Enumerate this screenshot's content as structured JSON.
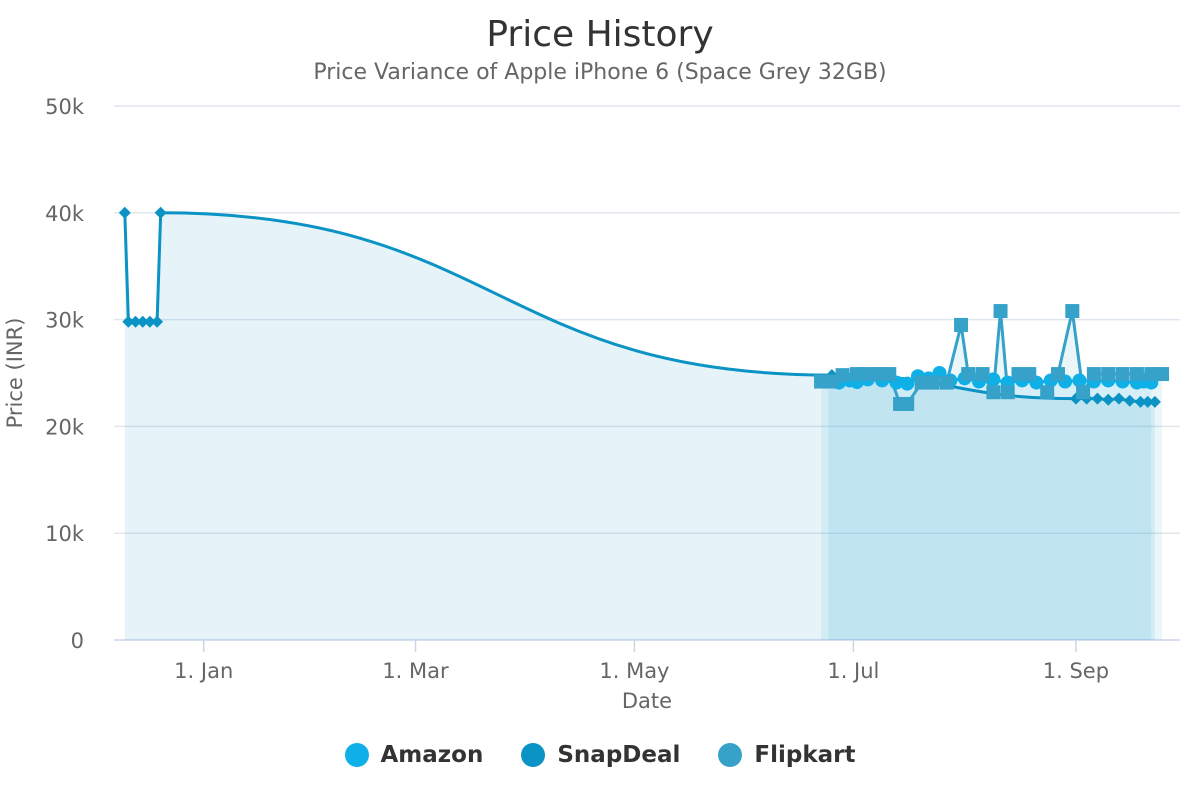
{
  "chart_data": {
    "type": "line",
    "title": "Price History",
    "subtitle": "Price Variance of Apple iPhone 6 (Space Grey 32GB)",
    "xlabel": "Date",
    "ylabel": "Price (INR)",
    "ylim": [
      0,
      50000
    ],
    "y_ticks": [
      "0",
      "10k",
      "20k",
      "30k",
      "40k",
      "50k"
    ],
    "x_ticks": [
      {
        "label": "1. Jan",
        "date": "2015-01-01"
      },
      {
        "label": "1. Mar",
        "date": "2015-03-01"
      },
      {
        "label": "1. May",
        "date": "2015-05-01"
      },
      {
        "label": "1. Jul",
        "date": "2015-07-01"
      },
      {
        "label": "1. Sep",
        "date": "2015-09-01"
      }
    ],
    "xlim": [
      "2014-12-07",
      "2015-09-30"
    ],
    "grid": true,
    "legend_position": "bottom-center",
    "series": [
      {
        "name": "Amazon",
        "color": "#0fb0e8",
        "marker": "circle",
        "points": [
          [
            "2015-06-24",
            24200
          ],
          [
            "2015-06-27",
            24100
          ],
          [
            "2015-06-30",
            24300
          ],
          [
            "2015-07-02",
            24150
          ],
          [
            "2015-07-05",
            24400
          ],
          [
            "2015-07-09",
            24300
          ],
          [
            "2015-07-13",
            24100
          ],
          [
            "2015-07-16",
            24000
          ],
          [
            "2015-07-19",
            24700
          ],
          [
            "2015-07-22",
            24500
          ],
          [
            "2015-07-25",
            25000
          ],
          [
            "2015-07-28",
            24300
          ],
          [
            "2015-08-01",
            24500
          ],
          [
            "2015-08-05",
            24200
          ],
          [
            "2015-08-09",
            24400
          ],
          [
            "2015-08-13",
            24100
          ],
          [
            "2015-08-17",
            24300
          ],
          [
            "2015-08-21",
            24100
          ],
          [
            "2015-08-25",
            24300
          ],
          [
            "2015-08-29",
            24200
          ],
          [
            "2015-09-02",
            24300
          ],
          [
            "2015-09-06",
            24200
          ],
          [
            "2015-09-10",
            24300
          ],
          [
            "2015-09-14",
            24200
          ],
          [
            "2015-09-18",
            24100
          ],
          [
            "2015-09-20",
            24200
          ],
          [
            "2015-09-22",
            24100
          ]
        ]
      },
      {
        "name": "SnapDeal",
        "color": "#0a93c4",
        "marker": "diamond",
        "points": [
          [
            "2014-12-10",
            40000
          ],
          [
            "2014-12-11",
            29800
          ],
          [
            "2014-12-13",
            29800
          ],
          [
            "2014-12-15",
            29800
          ],
          [
            "2014-12-17",
            29800
          ],
          [
            "2014-12-19",
            29800
          ],
          [
            "2014-12-20",
            40000
          ],
          [
            "2015-06-25",
            24800
          ],
          [
            "2015-09-01",
            22600
          ],
          [
            "2015-09-04",
            22600
          ],
          [
            "2015-09-07",
            22600
          ],
          [
            "2015-09-10",
            22500
          ],
          [
            "2015-09-13",
            22600
          ],
          [
            "2015-09-16",
            22400
          ],
          [
            "2015-09-19",
            22300
          ],
          [
            "2015-09-21",
            22300
          ],
          [
            "2015-09-23",
            22300
          ]
        ]
      },
      {
        "name": "Flipkart",
        "color": "#36a2c9",
        "marker": "square",
        "points": [
          [
            "2015-06-22",
            24200
          ],
          [
            "2015-06-25",
            24200
          ],
          [
            "2015-06-28",
            24800
          ],
          [
            "2015-07-02",
            24900
          ],
          [
            "2015-07-05",
            24900
          ],
          [
            "2015-07-08",
            24900
          ],
          [
            "2015-07-11",
            24900
          ],
          [
            "2015-07-14",
            22100
          ],
          [
            "2015-07-16",
            22100
          ],
          [
            "2015-07-20",
            24100
          ],
          [
            "2015-07-23",
            24100
          ],
          [
            "2015-07-27",
            24100
          ],
          [
            "2015-07-31",
            29500
          ],
          [
            "2015-08-02",
            24900
          ],
          [
            "2015-08-06",
            24900
          ],
          [
            "2015-08-09",
            23200
          ],
          [
            "2015-08-11",
            30800
          ],
          [
            "2015-08-13",
            23200
          ],
          [
            "2015-08-16",
            24900
          ],
          [
            "2015-08-19",
            24900
          ],
          [
            "2015-08-24",
            23200
          ],
          [
            "2015-08-27",
            24900
          ],
          [
            "2015-08-31",
            30800
          ],
          [
            "2015-09-03",
            23200
          ],
          [
            "2015-09-06",
            24900
          ],
          [
            "2015-09-10",
            24900
          ],
          [
            "2015-09-14",
            24900
          ],
          [
            "2015-09-18",
            24900
          ],
          [
            "2015-09-22",
            24900
          ],
          [
            "2015-09-25",
            24900
          ]
        ]
      }
    ]
  }
}
